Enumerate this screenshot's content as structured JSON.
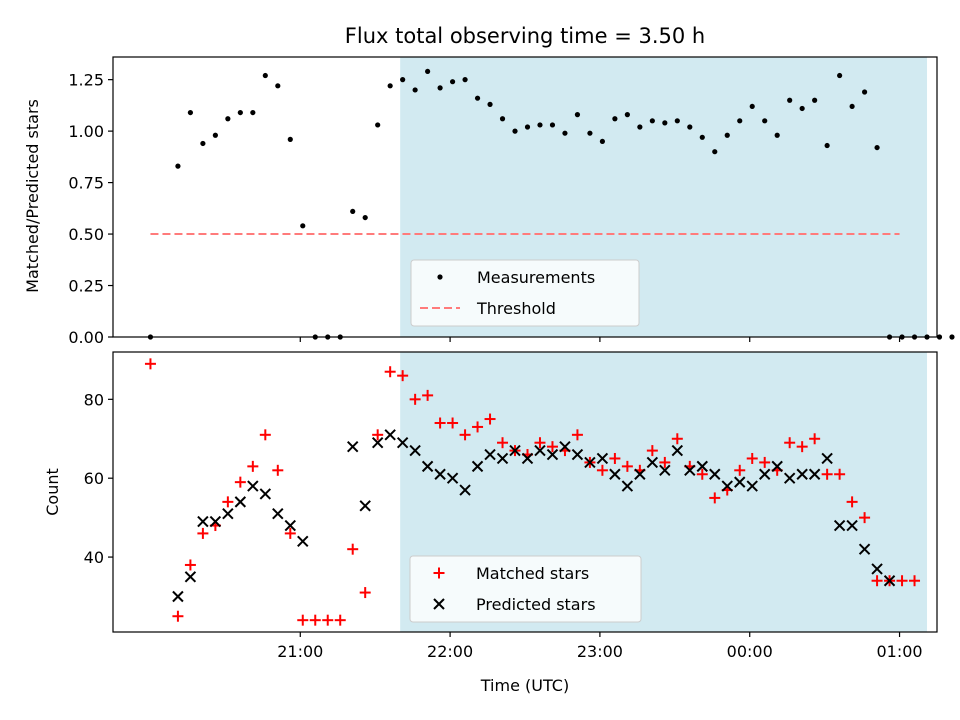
{
  "chart_data": [
    {
      "type": "scatter",
      "title": "Flux total observing time = 3.50 h",
      "xlabel": "",
      "ylabel": "Matched/Predicted stars",
      "x_unit": "minutes after 20:00 UTC",
      "xlim": [
        -15,
        315
      ],
      "ylim": [
        0,
        1.36
      ],
      "y_ticks": [
        0.0,
        0.25,
        0.5,
        0.75,
        1.0,
        1.25
      ],
      "y_tick_labels": [
        "0.00",
        "0.25",
        "0.50",
        "0.75",
        "1.00",
        "1.25"
      ],
      "x_ticks": [
        60,
        120,
        180,
        240,
        300
      ],
      "x_tick_labels_shown": false,
      "shaded_region": {
        "x_start": 100,
        "x_end": 311,
        "color": "#add8e6"
      },
      "legend": {
        "placement": "lower-center",
        "entries": [
          "Measurements",
          "Threshold"
        ]
      },
      "series": [
        {
          "name": "Measurements",
          "style": "dot",
          "color": "#000000",
          "x": [
            0,
            11,
            16,
            21,
            26,
            31,
            36,
            41,
            46,
            51,
            56,
            61,
            66,
            71,
            76,
            81,
            86,
            91,
            96,
            101,
            106,
            111,
            116,
            121,
            126,
            131,
            136,
            141,
            146,
            151,
            156,
            161,
            166,
            171,
            176,
            181,
            186,
            191,
            196,
            201,
            206,
            211,
            216,
            221,
            226,
            231,
            236,
            241,
            246,
            251,
            256,
            261,
            266,
            271,
            276,
            281,
            286,
            291,
            296,
            301,
            306,
            311,
            316,
            321
          ],
          "y": [
            0.0,
            0.83,
            1.09,
            0.94,
            0.98,
            1.06,
            1.09,
            1.09,
            1.27,
            1.22,
            0.96,
            0.54,
            0.0,
            0.0,
            0.0,
            0.61,
            0.58,
            1.03,
            1.22,
            1.25,
            1.2,
            1.29,
            1.21,
            1.24,
            1.25,
            1.16,
            1.13,
            1.06,
            1.0,
            1.02,
            1.03,
            1.03,
            0.99,
            1.08,
            0.99,
            0.95,
            1.06,
            1.08,
            1.02,
            1.05,
            1.04,
            1.05,
            1.02,
            0.97,
            0.9,
            0.98,
            1.05,
            1.12,
            1.05,
            0.98,
            1.15,
            1.11,
            1.15,
            0.93,
            1.27,
            1.12,
            1.19,
            0.92,
            0.0,
            0.0,
            0.0,
            0.0,
            0.0,
            0.0
          ]
        },
        {
          "name": "Threshold",
          "style": "dashed-line",
          "color": "#ff7b7b",
          "x": [
            0,
            300
          ],
          "y": [
            0.5,
            0.5
          ]
        }
      ]
    },
    {
      "type": "scatter",
      "title": "",
      "xlabel": "Time (UTC)",
      "ylabel": "Count",
      "x_unit": "minutes after 20:00 UTC",
      "xlim": [
        -15,
        315
      ],
      "ylim": [
        21,
        92
      ],
      "y_ticks": [
        40,
        60,
        80
      ],
      "y_tick_labels": [
        "40",
        "60",
        "80"
      ],
      "x_ticks": [
        60,
        120,
        180,
        240,
        300
      ],
      "x_tick_labels": [
        "21:00",
        "22:00",
        "23:00",
        "00:00",
        "01:00"
      ],
      "shaded_region": {
        "x_start": 100,
        "x_end": 311,
        "color": "#add8e6"
      },
      "legend": {
        "placement": "lower-center",
        "entries": [
          "Matched stars",
          "Predicted stars"
        ]
      },
      "series": [
        {
          "name": "Matched stars",
          "marker": "plus",
          "color": "#ff0000",
          "x": [
            0,
            11,
            16,
            21,
            26,
            31,
            36,
            41,
            46,
            51,
            56,
            61,
            66,
            71,
            76,
            81,
            86,
            91,
            96,
            101,
            106,
            111,
            116,
            121,
            126,
            131,
            136,
            141,
            146,
            151,
            156,
            161,
            166,
            171,
            176,
            181,
            186,
            191,
            196,
            201,
            206,
            211,
            216,
            221,
            226,
            231,
            236,
            241,
            246,
            251,
            256,
            261,
            266,
            271,
            276,
            281,
            286,
            291,
            296,
            301,
            306
          ],
          "y": [
            89,
            25,
            38,
            46,
            48,
            54,
            59,
            63,
            71,
            62,
            46,
            24,
            24,
            24,
            24,
            42,
            31,
            71,
            87,
            86,
            80,
            81,
            74,
            74,
            71,
            73,
            75,
            69,
            67,
            66,
            69,
            68,
            67,
            71,
            64,
            62,
            65,
            63,
            62,
            67,
            64,
            70,
            63,
            61,
            55,
            57,
            62,
            65,
            64,
            62,
            69,
            68,
            70,
            61,
            61,
            54,
            50,
            34,
            34,
            34,
            34
          ]
        },
        {
          "name": "Predicted stars",
          "marker": "x",
          "color": "#000000",
          "x": [
            11,
            16,
            21,
            26,
            31,
            36,
            41,
            46,
            51,
            56,
            61,
            81,
            86,
            91,
            96,
            101,
            106,
            111,
            116,
            121,
            126,
            131,
            136,
            141,
            146,
            151,
            156,
            161,
            166,
            171,
            176,
            181,
            186,
            191,
            196,
            201,
            206,
            211,
            216,
            221,
            226,
            231,
            236,
            241,
            246,
            251,
            256,
            261,
            266,
            271,
            276,
            281,
            286,
            291,
            296
          ],
          "y": [
            30,
            35,
            49,
            49,
            51,
            54,
            58,
            56,
            51,
            48,
            44,
            68,
            53,
            69,
            71,
            69,
            67,
            63,
            61,
            60,
            57,
            63,
            66,
            65,
            67,
            65,
            67,
            66,
            68,
            66,
            64,
            65,
            61,
            58,
            61,
            64,
            62,
            67,
            62,
            63,
            61,
            58,
            59,
            58,
            61,
            63,
            60,
            61,
            61,
            65,
            48,
            48,
            42,
            37,
            34
          ]
        }
      ]
    }
  ]
}
